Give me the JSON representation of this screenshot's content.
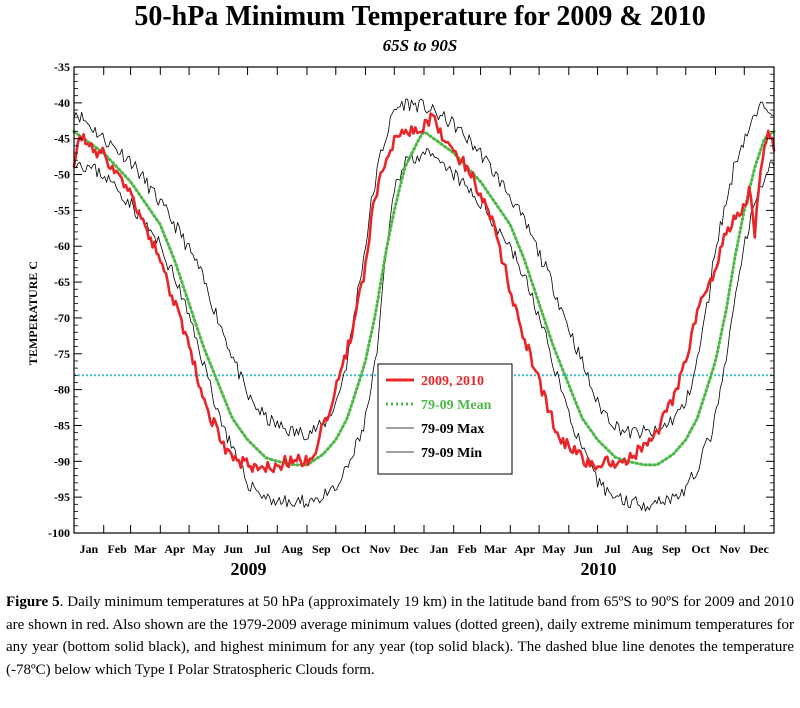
{
  "chart_data": {
    "type": "line",
    "title": "50-hPa Minimum Temperature for 2009 & 2010",
    "subtitle": "65S to 90S",
    "ylabel": "TEMPERATURE C",
    "ylim": [
      -100,
      -35
    ],
    "yticks": [
      -35,
      -40,
      -45,
      -50,
      -55,
      -60,
      -65,
      -70,
      -75,
      -80,
      -85,
      -90,
      -95,
      -100
    ],
    "xlim": [
      0,
      730
    ],
    "month_labels": [
      "Jan",
      "Feb",
      "Mar",
      "Apr",
      "May",
      "Jun",
      "Jul",
      "Aug",
      "Sep",
      "Oct",
      "Nov",
      "Dec",
      "Jan",
      "Feb",
      "Mar",
      "Apr",
      "May",
      "Jun",
      "Jul",
      "Aug",
      "Sep",
      "Oct",
      "Nov",
      "Dec"
    ],
    "year_labels": [
      "2009",
      "2010"
    ],
    "threshold": -78,
    "legend_position": "center",
    "colors": {
      "red": "#e8262a",
      "green": "#4db848",
      "max": "#000000",
      "min": "#000000",
      "threshold": "#3fbfd8"
    },
    "series": [
      {
        "name": "2009, 2010",
        "style": "solid-red",
        "x": [
          0,
          5,
          10,
          15,
          20,
          25,
          31,
          40,
          50,
          59,
          70,
          80,
          90,
          100,
          110,
          120,
          130,
          140,
          150,
          160,
          170,
          181,
          190,
          200,
          212,
          220,
          230,
          243,
          250,
          260,
          273,
          280,
          290,
          304,
          310,
          320,
          334,
          340,
          350,
          360,
          365,
          375,
          385,
          396,
          405,
          415,
          424,
          435,
          445,
          455,
          465,
          475,
          485,
          495,
          505,
          515,
          525,
          535,
          546,
          555,
          565,
          577,
          585,
          595,
          608,
          615,
          625,
          638,
          645,
          655,
          669,
          675,
          685,
          695,
          700,
          705,
          710,
          715,
          720,
          725,
          730
        ],
        "values": [
          -48,
          -45,
          -44,
          -47,
          -46,
          -47,
          -47,
          -49,
          -51,
          -53,
          -56,
          -59,
          -62,
          -66,
          -70,
          -74,
          -79,
          -83,
          -86,
          -89,
          -90,
          -90.5,
          -91,
          -91,
          -91,
          -90,
          -90,
          -90,
          -89,
          -85,
          -80,
          -77,
          -72,
          -63,
          -56,
          -50,
          -45,
          -44,
          -44,
          -44,
          -43,
          -42,
          -45,
          -47,
          -48,
          -50,
          -53,
          -56,
          -61,
          -66,
          -71,
          -75,
          -79,
          -83,
          -86,
          -88,
          -89,
          -90,
          -91,
          -90,
          -90,
          -90,
          -89,
          -88,
          -86,
          -84,
          -81,
          -76,
          -72,
          -67,
          -63,
          -60,
          -57,
          -55,
          -54,
          -52,
          -58,
          -50,
          -47,
          -44,
          -46
        ]
      },
      {
        "name": "79-09 Mean",
        "style": "dotted-green",
        "x": [
          0,
          31,
          59,
          90,
          105,
          120,
          135,
          150,
          165,
          181,
          200,
          212,
          230,
          243,
          260,
          273,
          285,
          297,
          304,
          315,
          325,
          334,
          345,
          360,
          365,
          396,
          424,
          455,
          470,
          485,
          500,
          515,
          530,
          546,
          565,
          577,
          595,
          608,
          625,
          638,
          650,
          662,
          669,
          680,
          690,
          699,
          710,
          720,
          730
        ],
        "values": [
          -44,
          -47,
          -51,
          -57,
          -62,
          -68,
          -74,
          -79,
          -84,
          -87,
          -89.5,
          -90,
          -90.5,
          -90.5,
          -89,
          -87,
          -84,
          -79,
          -76,
          -69,
          -61,
          -55,
          -49,
          -45,
          -44,
          -47,
          -51,
          -57,
          -62,
          -68,
          -74,
          -79,
          -84,
          -87,
          -89.5,
          -90,
          -90.5,
          -90.5,
          -89,
          -87,
          -84,
          -79,
          -76,
          -69,
          -61,
          -55,
          -49,
          -45,
          -44
        ]
      },
      {
        "name": "79-09 Max",
        "style": "thin-black",
        "x": [
          0,
          31,
          59,
          90,
          110,
          130,
          150,
          170,
          181,
          200,
          212,
          230,
          243,
          260,
          273,
          285,
          295,
          304,
          310,
          320,
          334,
          345,
          365,
          396,
          424,
          455,
          475,
          495,
          515,
          535,
          546,
          565,
          577,
          595,
          608,
          625,
          638,
          650,
          662,
          669,
          680,
          690,
          699,
          710,
          720,
          730
        ],
        "values": [
          -41,
          -45,
          -48,
          -54,
          -58,
          -63,
          -70,
          -77,
          -81,
          -84,
          -85,
          -86,
          -86,
          -85,
          -82,
          -76,
          -67,
          -60,
          -54,
          -47,
          -41,
          -40,
          -40.5,
          -43,
          -47,
          -53,
          -58,
          -64,
          -71,
          -78,
          -82,
          -85,
          -86,
          -86,
          -86,
          -84,
          -82,
          -76,
          -67,
          -60,
          -54,
          -48,
          -45,
          -42,
          -40,
          -41
        ]
      },
      {
        "name": "79-09 Min",
        "style": "thin-black",
        "x": [
          0,
          31,
          59,
          90,
          110,
          130,
          150,
          170,
          181,
          200,
          212,
          230,
          243,
          260,
          273,
          285,
          300,
          304,
          315,
          325,
          334,
          345,
          365,
          396,
          424,
          455,
          475,
          495,
          515,
          535,
          546,
          565,
          577,
          595,
          608,
          625,
          638,
          650,
          665,
          669,
          680,
          690,
          699,
          710,
          720,
          730
        ],
        "values": [
          -48,
          -50,
          -54,
          -60,
          -66,
          -74,
          -83,
          -90,
          -93,
          -95,
          -95.5,
          -96,
          -95.5,
          -95,
          -94,
          -91,
          -86,
          -84,
          -76,
          -62,
          -52,
          -48,
          -47,
          -50,
          -54,
          -60,
          -66,
          -74,
          -83,
          -90,
          -93,
          -95,
          -95.5,
          -96,
          -95.5,
          -95,
          -94,
          -91,
          -86,
          -84,
          -76,
          -67,
          -60,
          -54,
          -50,
          -48
        ]
      }
    ]
  },
  "caption": {
    "label": "Figure 5",
    "text": ". Daily minimum temperatures at 50 hPa (approximately 19 km) in the latitude band from 65ºS to 90ºS for 2009 and 2010 are shown in red.  Also shown are the 1979-2009 average minimum values (dotted green), daily extreme minimum temperatures for any year (bottom solid black), and highest minimum for any year (top solid black).  The dashed blue line denotes the temperature (-78ºC) below which Type I Polar Stratospheric Clouds form."
  }
}
